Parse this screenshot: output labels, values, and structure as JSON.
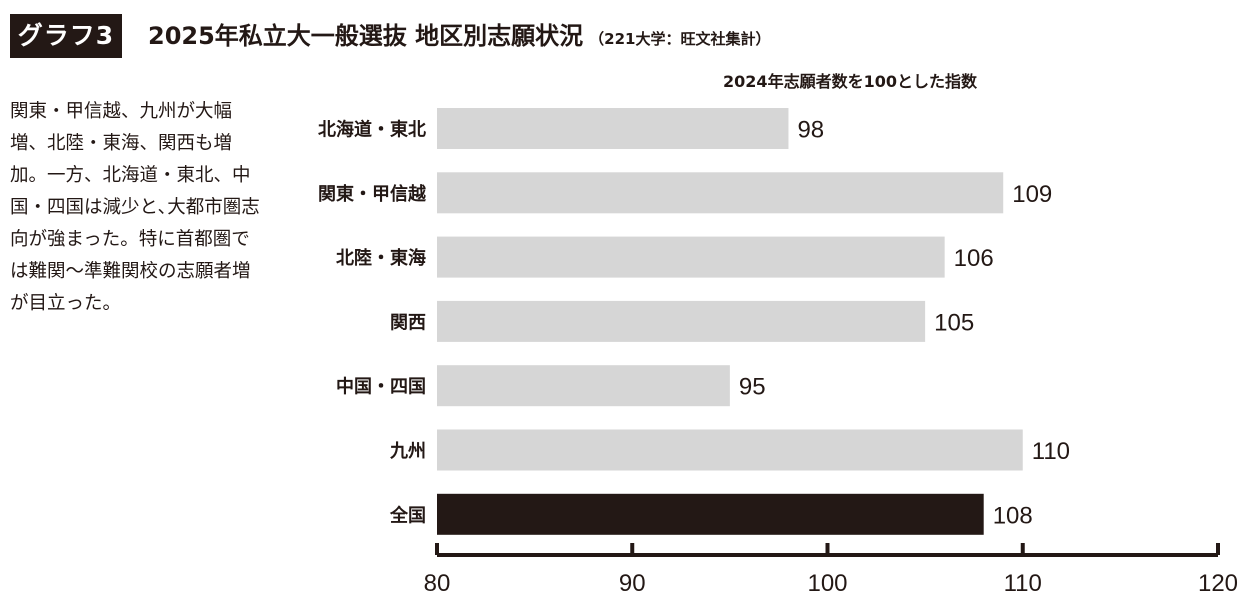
{
  "header": {
    "badge": "グラフ3",
    "title": "2025年私立大一般選抜 地区別志願状況",
    "source": "（221大学：旺文社集計）"
  },
  "description": "関東・甲信越、九州が大幅増、北陸・東海、関西も増加。一方、北海道・東北、中国・四国は減少と､大都市圏志向が強まった。特に首都圏では難関～準難関校の志願者増が目立った。",
  "chart_data": {
    "type": "bar",
    "orientation": "horizontal",
    "title": "2024年志願者数を100とした指数",
    "categories": [
      "北海道・東北",
      "関東・甲信越",
      "北陸・東海",
      "関西",
      "中国・四国",
      "九州",
      "全国"
    ],
    "values": [
      98,
      109,
      106,
      105,
      95,
      110,
      108
    ],
    "xlim": [
      80,
      120
    ],
    "xticks": [
      80,
      90,
      100,
      110,
      120
    ],
    "bar_colors": [
      "#d6d6d6",
      "#d6d6d6",
      "#d6d6d6",
      "#d6d6d6",
      "#d6d6d6",
      "#d6d6d6",
      "#231815"
    ],
    "grid": false,
    "legend": "none"
  }
}
